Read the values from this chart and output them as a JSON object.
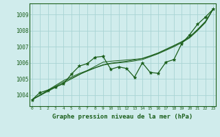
{
  "xlabel": "Graphe pression niveau de la mer (hPa)",
  "bg_color": "#d0ecec",
  "grid_color": "#a8d4d4",
  "line_color": "#1a5e1a",
  "x_ticks": [
    0,
    1,
    2,
    3,
    4,
    5,
    6,
    7,
    8,
    9,
    10,
    11,
    12,
    13,
    14,
    15,
    16,
    17,
    18,
    19,
    20,
    21,
    22,
    23
  ],
  "ylim": [
    1003.3,
    1009.7
  ],
  "xlim": [
    -0.3,
    23.3
  ],
  "yticks": [
    1004,
    1005,
    1006,
    1007,
    1008,
    1009
  ],
  "series": {
    "main": [
      1003.7,
      1004.15,
      1004.3,
      1004.5,
      1004.7,
      1005.3,
      1005.8,
      1005.95,
      1006.35,
      1006.4,
      1005.6,
      1005.75,
      1005.65,
      1005.1,
      1006.0,
      1005.4,
      1005.35,
      1006.05,
      1006.2,
      1007.2,
      1007.75,
      1008.4,
      1008.85,
      1009.35
    ],
    "linear": [
      1003.7,
      1003.96,
      1004.22,
      1004.48,
      1004.74,
      1005.0,
      1005.26,
      1005.52,
      1005.78,
      1006.04,
      1006.1,
      1006.14,
      1006.18,
      1006.22,
      1006.26,
      1006.42,
      1006.6,
      1006.82,
      1007.05,
      1007.3,
      1007.6,
      1008.05,
      1008.55,
      1009.35
    ],
    "smooth1": [
      1003.7,
      1003.98,
      1004.26,
      1004.54,
      1004.82,
      1005.05,
      1005.28,
      1005.48,
      1005.68,
      1005.85,
      1005.95,
      1006.0,
      1006.05,
      1006.12,
      1006.2,
      1006.38,
      1006.56,
      1006.78,
      1007.0,
      1007.25,
      1007.55,
      1008.0,
      1008.5,
      1009.35
    ],
    "smooth2": [
      1003.7,
      1004.0,
      1004.3,
      1004.6,
      1004.9,
      1005.12,
      1005.34,
      1005.52,
      1005.7,
      1005.88,
      1005.98,
      1006.04,
      1006.1,
      1006.18,
      1006.28,
      1006.44,
      1006.62,
      1006.85,
      1007.08,
      1007.32,
      1007.62,
      1008.08,
      1008.58,
      1009.35
    ]
  }
}
